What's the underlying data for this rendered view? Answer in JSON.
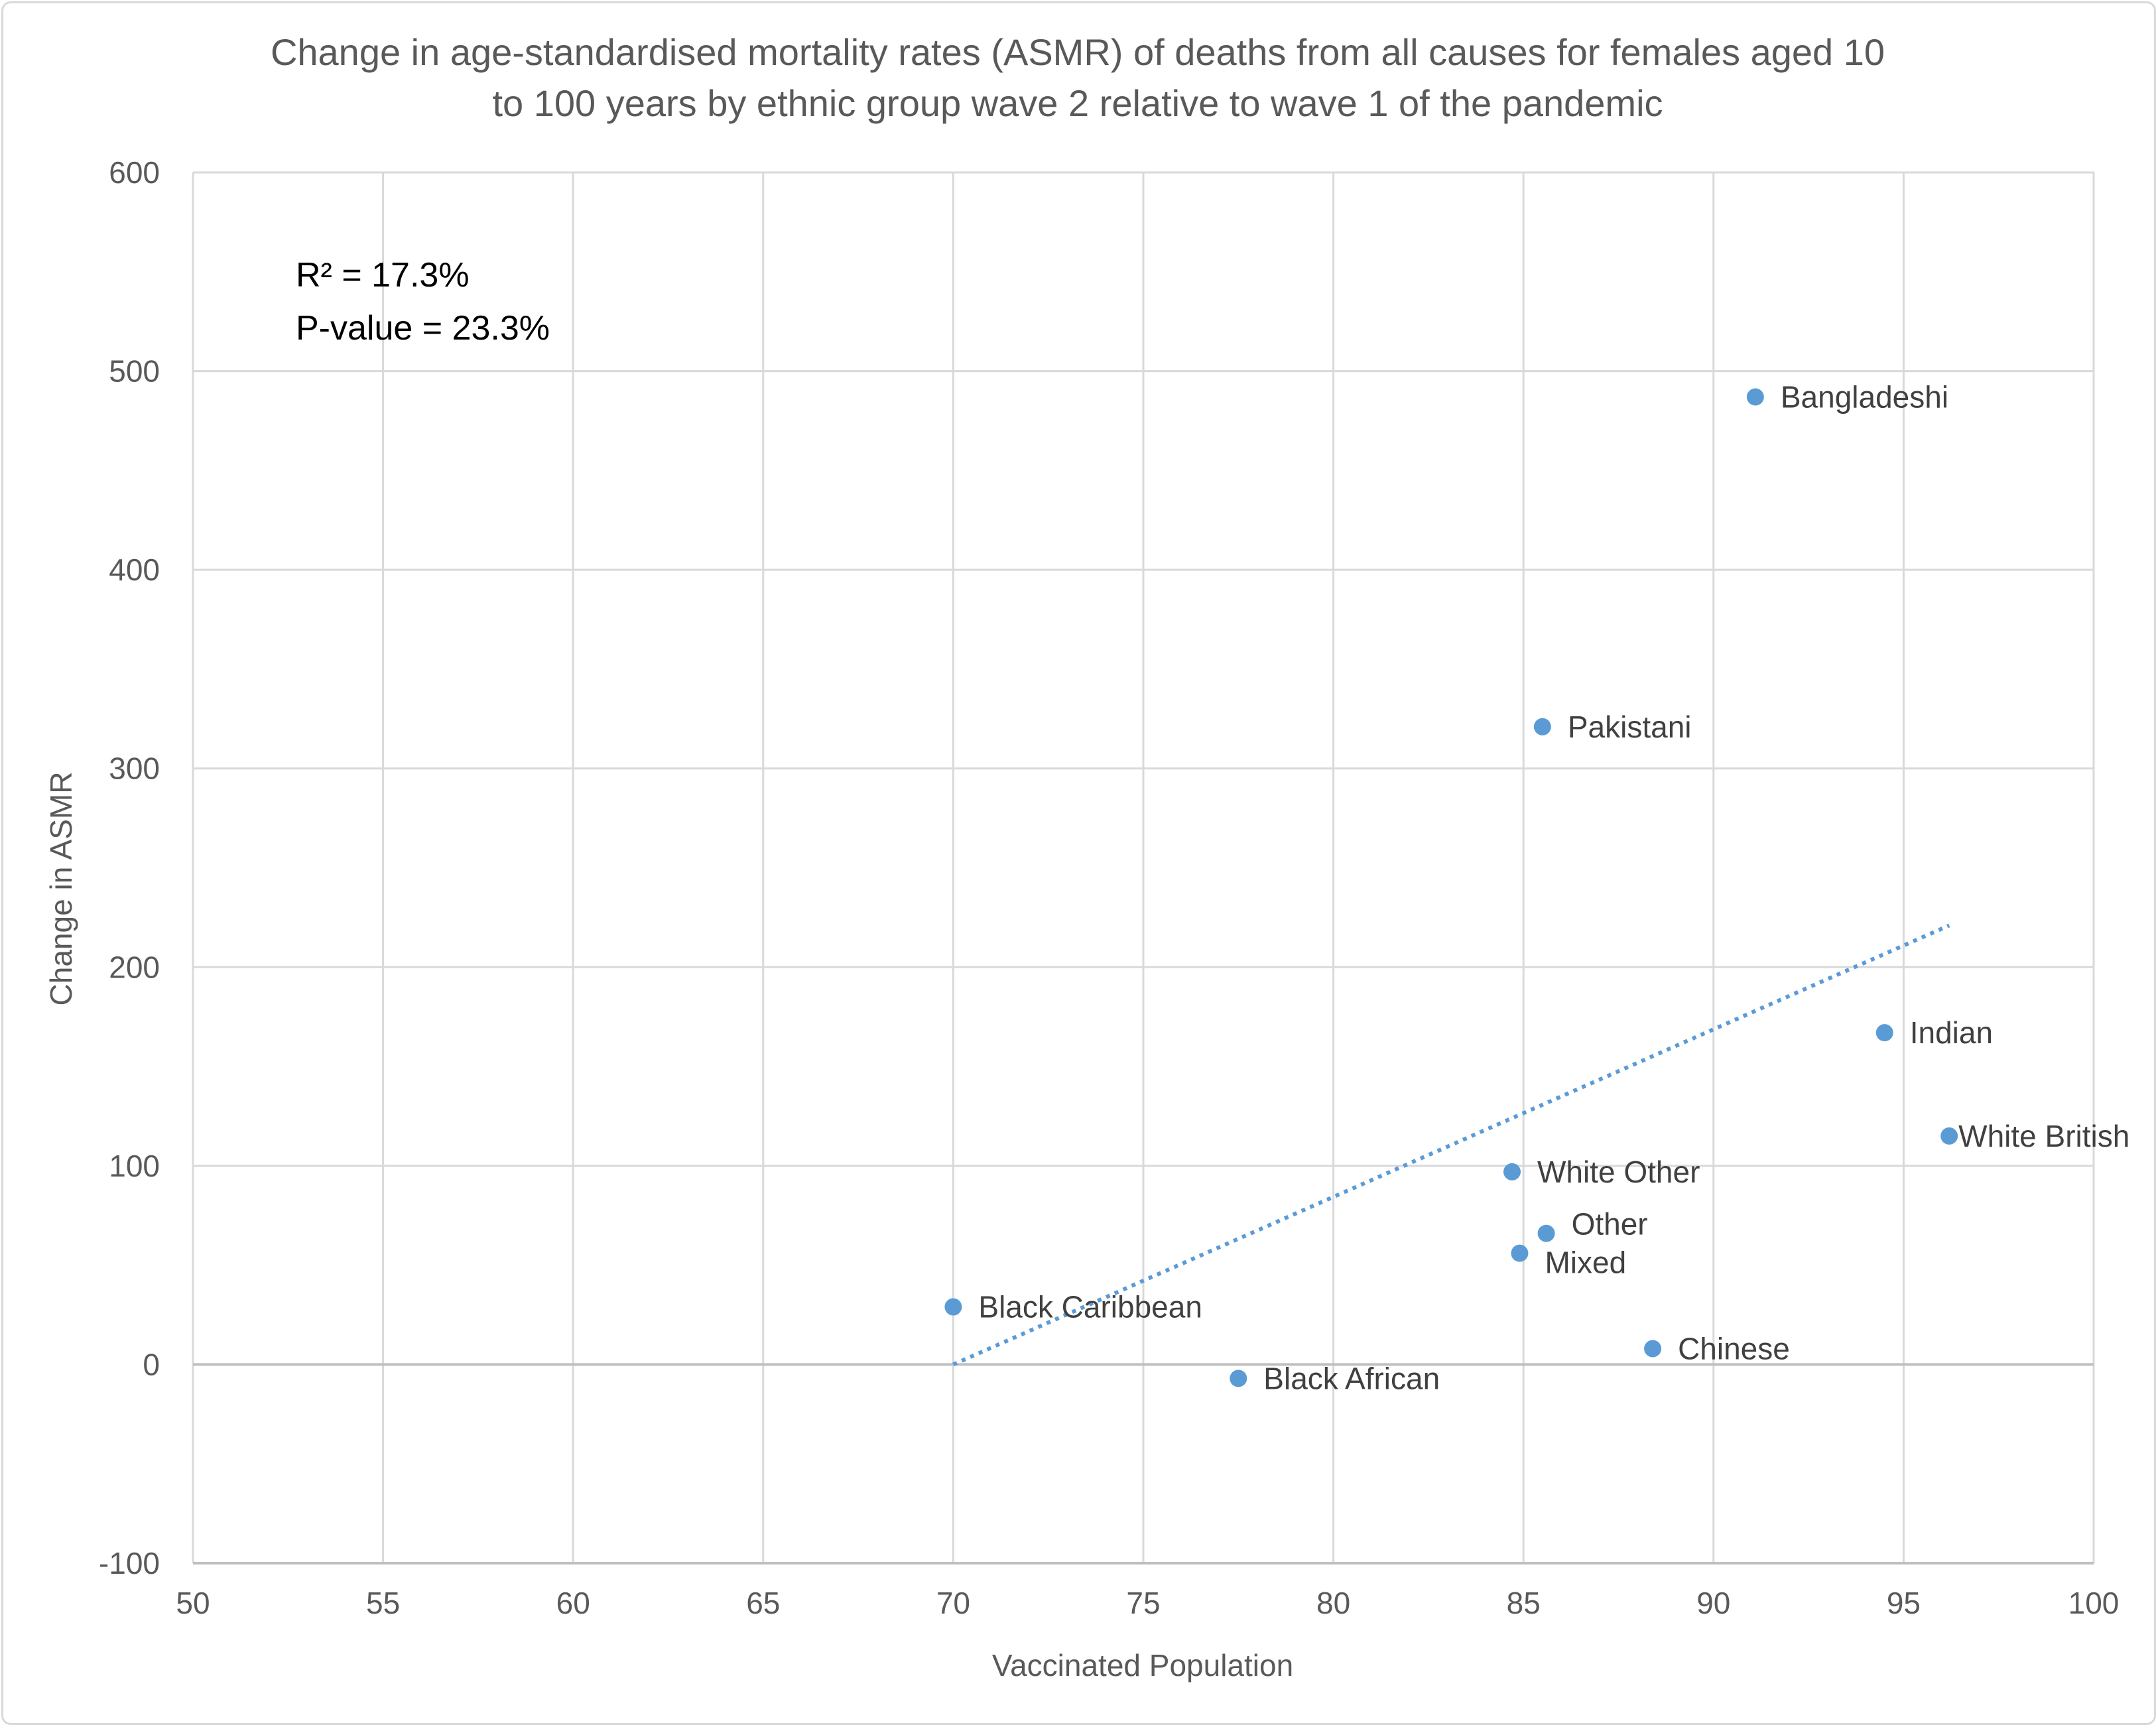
{
  "chart_data": {
    "type": "scatter",
    "title": [
      "Change in age-standardised mortality rates (ASMR) of deaths from all causes for females aged 10",
      "to 100 years by ethnic group wave 2 relative to wave 1 of the pandemic"
    ],
    "xlabel": "Vaccinated Population",
    "ylabel": "Change in ASMR",
    "xlim": [
      50,
      100
    ],
    "ylim": [
      -100,
      600
    ],
    "xticks": [
      50,
      55,
      60,
      65,
      70,
      75,
      80,
      85,
      90,
      95,
      100
    ],
    "yticks": [
      -100,
      0,
      100,
      200,
      300,
      400,
      500,
      600
    ],
    "grid": true,
    "legend": "none",
    "annotations": [
      "R² = 17.3%",
      "P-value = 23.3%"
    ],
    "points": [
      {
        "label": "Bangladeshi",
        "x": 91.1,
        "y": 487
      },
      {
        "label": "Pakistani",
        "x": 85.5,
        "y": 321
      },
      {
        "label": "Indian",
        "x": 94.5,
        "y": 167
      },
      {
        "label": "White British",
        "x": 96.2,
        "y": 115
      },
      {
        "label": "White Other",
        "x": 84.7,
        "y": 97
      },
      {
        "label": "Other",
        "x": 85.6,
        "y": 66
      },
      {
        "label": "Mixed",
        "x": 84.9,
        "y": 56
      },
      {
        "label": "Black Caribbean",
        "x": 70.0,
        "y": 29
      },
      {
        "label": "Chinese",
        "x": 88.4,
        "y": 8
      },
      {
        "label": "Black African",
        "x": 77.5,
        "y": -7
      }
    ],
    "trendline": {
      "type": "linear",
      "style": "dotted",
      "x": [
        70.0,
        96.2
      ],
      "y": [
        0,
        221
      ]
    },
    "colors": {
      "marker": "#5b9bd5",
      "trendline": "#5b9bd5",
      "grid": "#d9d9d9",
      "text": "#595959"
    }
  }
}
